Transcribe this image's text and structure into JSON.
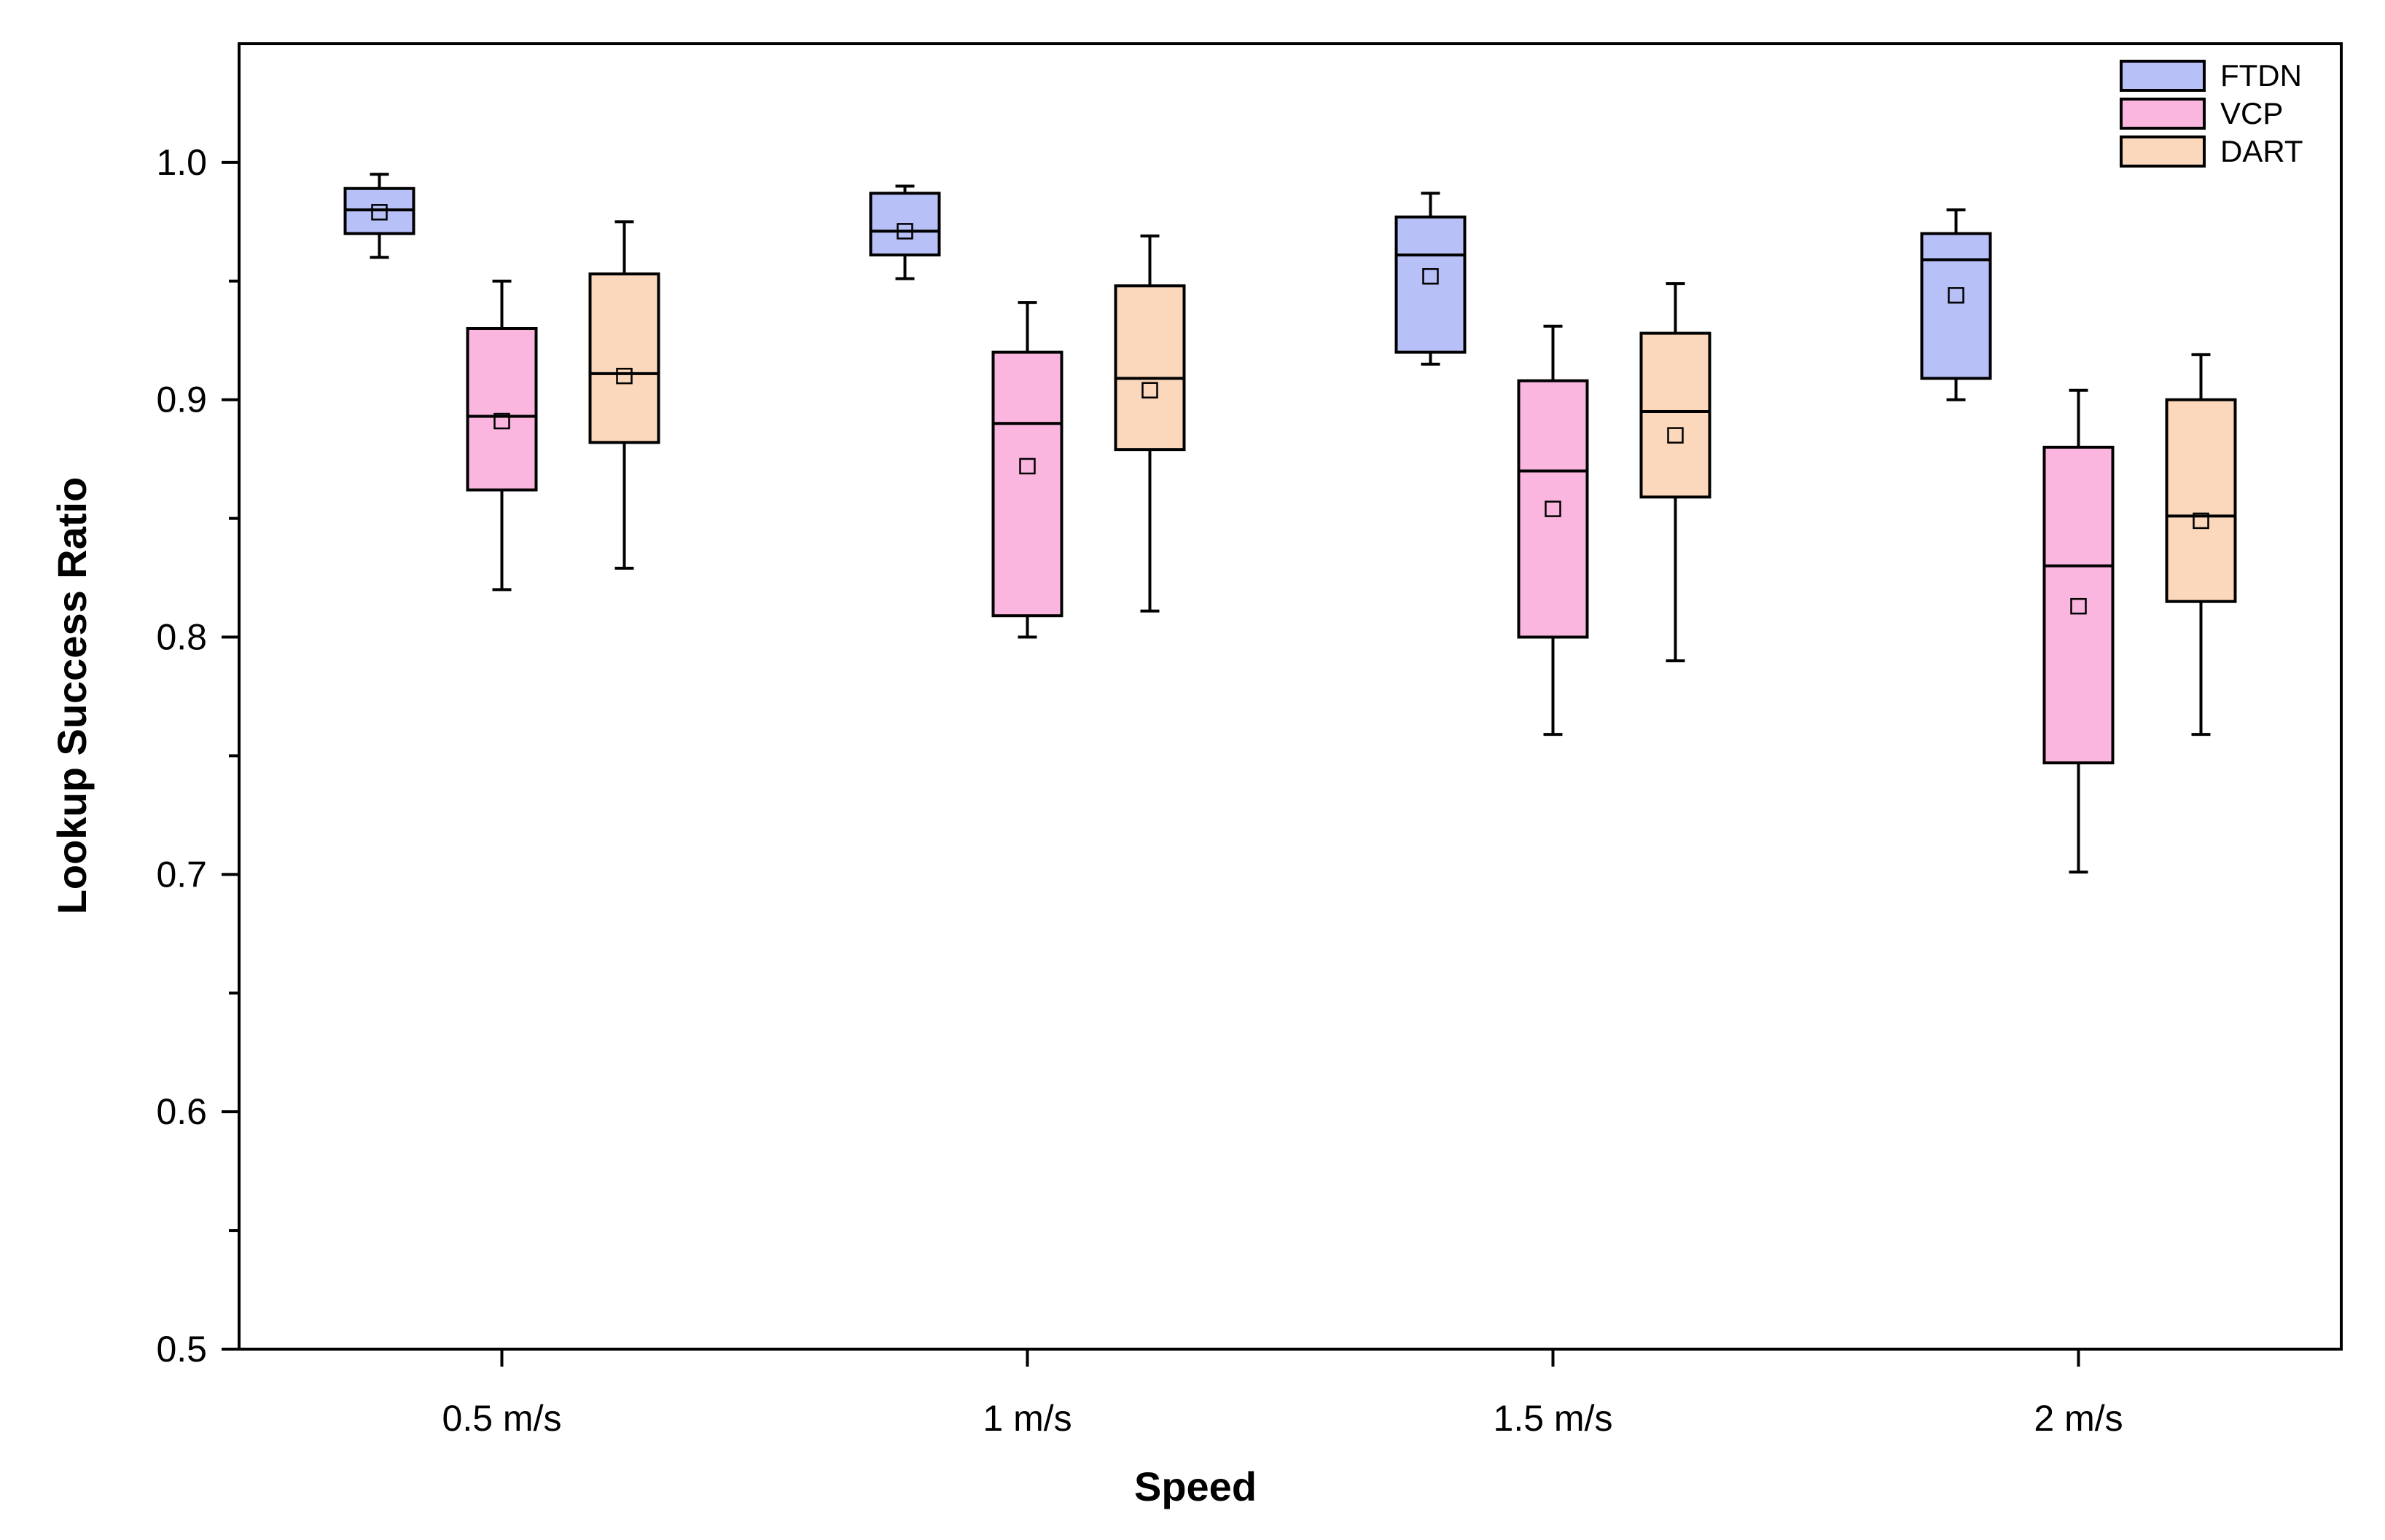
{
  "chart_data": {
    "type": "box",
    "xlabel": "Speed",
    "ylabel": "Lookup Success Ratio",
    "ylim": [
      0.5,
      1.05
    ],
    "yticks": [
      0.5,
      0.6,
      0.7,
      0.8,
      0.9,
      1.0
    ],
    "ytick_labels": [
      "0.5",
      "0.6",
      "0.7",
      "0.8",
      "0.9",
      "1.0"
    ],
    "yminor": [
      0.55,
      0.65,
      0.75,
      0.85,
      0.95
    ],
    "categories": [
      "0.5 m/s",
      "1 m/s",
      "1.5 m/s",
      "2 m/s"
    ],
    "legend_position": "top-right",
    "grid": false,
    "series": [
      {
        "name": "FTDN",
        "color": "#b8c0f8",
        "boxes": [
          {
            "whisker_low": 0.96,
            "q1": 0.97,
            "median": 0.98,
            "q3": 0.989,
            "whisker_high": 0.995,
            "mean": 0.979
          },
          {
            "whisker_low": 0.951,
            "q1": 0.961,
            "median": 0.971,
            "q3": 0.987,
            "whisker_high": 0.99,
            "mean": 0.971
          },
          {
            "whisker_low": 0.915,
            "q1": 0.92,
            "median": 0.961,
            "q3": 0.977,
            "whisker_high": 0.987,
            "mean": 0.952
          },
          {
            "whisker_low": 0.9,
            "q1": 0.909,
            "median": 0.959,
            "q3": 0.97,
            "whisker_high": 0.98,
            "mean": 0.944
          }
        ]
      },
      {
        "name": "VCP",
        "color": "#fbb6e0",
        "boxes": [
          {
            "whisker_low": 0.82,
            "q1": 0.862,
            "median": 0.893,
            "q3": 0.93,
            "whisker_high": 0.95,
            "mean": 0.891
          },
          {
            "whisker_low": 0.8,
            "q1": 0.809,
            "median": 0.89,
            "q3": 0.92,
            "whisker_high": 0.941,
            "mean": 0.872
          },
          {
            "whisker_low": 0.759,
            "q1": 0.8,
            "median": 0.87,
            "q3": 0.908,
            "whisker_high": 0.931,
            "mean": 0.854
          },
          {
            "whisker_low": 0.701,
            "q1": 0.747,
            "median": 0.83,
            "q3": 0.88,
            "whisker_high": 0.904,
            "mean": 0.813
          }
        ]
      },
      {
        "name": "DART",
        "color": "#fbd8bc",
        "boxes": [
          {
            "whisker_low": 0.829,
            "q1": 0.882,
            "median": 0.911,
            "q3": 0.953,
            "whisker_high": 0.975,
            "mean": 0.91
          },
          {
            "whisker_low": 0.811,
            "q1": 0.879,
            "median": 0.909,
            "q3": 0.948,
            "whisker_high": 0.969,
            "mean": 0.904
          },
          {
            "whisker_low": 0.79,
            "q1": 0.859,
            "median": 0.895,
            "q3": 0.928,
            "whisker_high": 0.949,
            "mean": 0.885
          },
          {
            "whisker_low": 0.759,
            "q1": 0.815,
            "median": 0.851,
            "q3": 0.9,
            "whisker_high": 0.919,
            "mean": 0.849
          }
        ]
      }
    ]
  }
}
